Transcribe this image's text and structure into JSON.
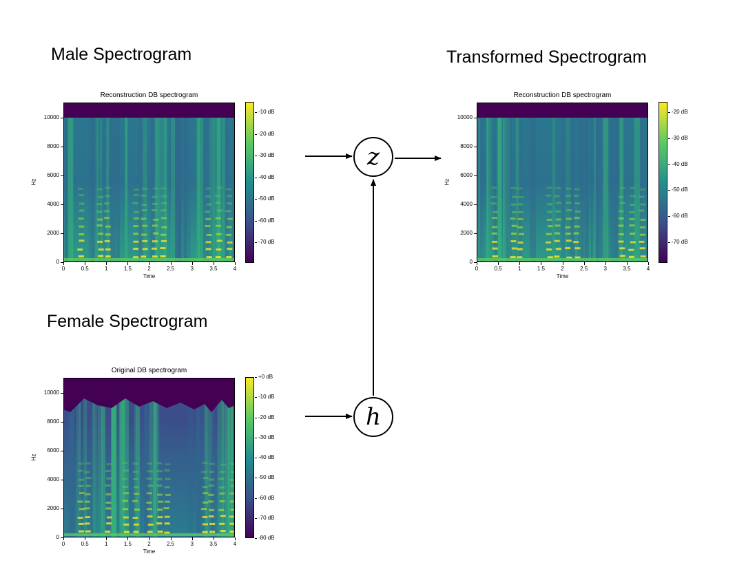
{
  "headings": {
    "male": "Male Spectrogram",
    "female": "Female Spectrogram",
    "transformed": "Transformed Spectrogram"
  },
  "nodes": {
    "z": "z",
    "h": "h"
  },
  "colors": {
    "dark": "#440154",
    "mid": "#21908d",
    "bright": "#fde725"
  },
  "panels": {
    "male": {
      "title": "Reconstruction DB spectrogram",
      "ylabel": "Hz",
      "xlabel": "Time",
      "yticks": [
        "10000",
        "8000",
        "6000",
        "4000",
        "2000",
        "0"
      ],
      "xticks": [
        "0",
        "0.5",
        "1",
        "1.5",
        "2",
        "2.5",
        "3",
        "3.5",
        "4"
      ],
      "cbar": [
        "-10 dB",
        "-20 dB",
        "-30 dB",
        "-40 dB",
        "-50 dB",
        "-60 dB",
        "-70 dB"
      ]
    },
    "female": {
      "title": "Original DB spectrogram",
      "ylabel": "Hz",
      "xlabel": "Time",
      "yticks": [
        "10000",
        "8000",
        "6000",
        "4000",
        "2000",
        "0"
      ],
      "xticks": [
        "0",
        "0.5",
        "1",
        "1.5",
        "2",
        "2.5",
        "3",
        "3.5",
        "4"
      ],
      "cbar": [
        "+0 dB",
        "-10 dB",
        "-20 dB",
        "-30 dB",
        "-40 dB",
        "-50 dB",
        "-60 dB",
        "-70 dB",
        "-80 dB"
      ]
    },
    "transformed": {
      "title": "Reconstruction DB spectrogram",
      "ylabel": "Hz",
      "xlabel": "Time",
      "yticks": [
        "10000",
        "8000",
        "6000",
        "4000",
        "2000",
        "0"
      ],
      "xticks": [
        "0",
        "0.5",
        "1",
        "1.5",
        "2",
        "2.5",
        "3",
        "3.5",
        "4"
      ],
      "cbar": [
        "-20 dB",
        "-30 dB",
        "-40 dB",
        "-50 dB",
        "-60 dB",
        "-70 dB"
      ]
    }
  }
}
